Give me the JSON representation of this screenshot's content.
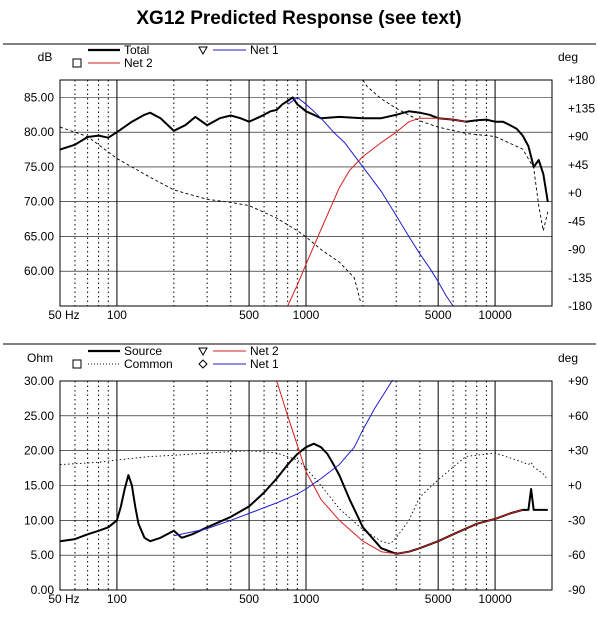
{
  "title": "XG12 Predicted Response (see text)",
  "colors": {
    "total": "#000000",
    "net1": "#1f1fcc",
    "net2": "#d42020",
    "phase": "#000000",
    "grid": "#000000"
  },
  "chart_data": [
    {
      "type": "line",
      "x_scale": "log",
      "xlim": [
        50,
        20000
      ],
      "x_ticks": [
        50,
        100,
        500,
        1000,
        5000,
        10000
      ],
      "x_tick_labels": [
        "50 Hz",
        "100",
        "500",
        "1000",
        "5000",
        "10000"
      ],
      "ylabel": "dB",
      "ylim": [
        55,
        87.5
      ],
      "y_ticks": [
        60,
        65,
        70,
        75,
        80,
        85
      ],
      "y_tick_labels": [
        "60.00",
        "65.00",
        "70.00",
        "75.00",
        "80.00",
        "85.00"
      ],
      "y2label": "deg",
      "y2lim": [
        -180,
        180
      ],
      "y2_ticks": [
        -180,
        -135,
        -90,
        -45,
        0,
        45,
        90,
        135,
        180
      ],
      "y2_tick_labels": [
        "-180",
        "-135",
        "-90",
        "-45",
        "+0",
        "+45",
        "+90",
        "+135",
        "+180"
      ],
      "grid": true,
      "legend": [
        {
          "label": "Total",
          "marker": "line",
          "style": "solid-thick",
          "color": "#000000"
        },
        {
          "label": "Net 1",
          "marker": "triangle",
          "style": "solid",
          "color": "#1f1fcc"
        },
        {
          "label": "Net 2",
          "marker": "square",
          "style": "solid",
          "color": "#d42020"
        }
      ],
      "series": [
        {
          "name": "Total",
          "axis": "left",
          "style": "solid-thick",
          "color": "#000000",
          "x": [
            50,
            60,
            70,
            80,
            90,
            100,
            120,
            140,
            150,
            170,
            200,
            230,
            260,
            300,
            350,
            400,
            450,
            500,
            550,
            600,
            650,
            700,
            750,
            800,
            850,
            900,
            950,
            1000,
            1100,
            1200,
            1500,
            2000,
            2500,
            3000,
            3500,
            4000,
            4500,
            5000,
            6000,
            7000,
            8000,
            9000,
            10000,
            11000,
            12000,
            13000,
            14000,
            15000,
            16000,
            17000,
            18000,
            19000
          ],
          "y": [
            77.5,
            78.2,
            79.3,
            79.5,
            79.2,
            80.0,
            81.5,
            82.5,
            82.8,
            82.0,
            80.2,
            81.0,
            82.2,
            81.0,
            82.0,
            82.4,
            82.0,
            81.5,
            82.0,
            82.5,
            83.0,
            83.2,
            84.0,
            84.5,
            85.0,
            84.0,
            83.5,
            83.0,
            82.5,
            82.0,
            82.2,
            82.0,
            82.0,
            82.5,
            83.0,
            82.8,
            82.5,
            82.0,
            81.8,
            81.5,
            81.7,
            81.8,
            81.5,
            81.5,
            81.0,
            80.5,
            79.5,
            78.0,
            75.0,
            76.0,
            74.0,
            70.0
          ]
        },
        {
          "name": "Net 1",
          "axis": "left",
          "style": "solid",
          "color": "#1f1fcc",
          "x": [
            800,
            850,
            900,
            950,
            1000,
            1100,
            1200,
            1400,
            1600,
            2000,
            2500,
            3000,
            3500,
            4000,
            4500,
            5000,
            5500,
            6000
          ],
          "y": [
            84.0,
            84.5,
            85.0,
            84.5,
            84.0,
            83.0,
            82.0,
            80.0,
            78.5,
            75.0,
            71.5,
            68.0,
            65.0,
            62.5,
            60.5,
            58.5,
            56.5,
            55.0
          ]
        },
        {
          "name": "Net 2",
          "axis": "left",
          "style": "solid",
          "color": "#d42020",
          "x": [
            800,
            900,
            1000,
            1200,
            1500,
            1700,
            2000,
            2500,
            3000,
            3500,
            4000,
            4500,
            5000,
            6000,
            7000
          ],
          "y": [
            55.0,
            58.0,
            61.0,
            66.0,
            72.0,
            74.5,
            76.5,
            78.5,
            80.0,
            81.5,
            82.0,
            82.0,
            82.0,
            81.8,
            81.5
          ]
        },
        {
          "name": "Phase",
          "axis": "right",
          "style": "dashed",
          "color": "#000000",
          "x": [
            50,
            70,
            100,
            150,
            200,
            300,
            400,
            500,
            700,
            900,
            1000,
            1200,
            1500,
            1800,
            1950,
            2000,
            2100,
            2500,
            3000,
            4000,
            5000,
            7000,
            10000,
            14000,
            16000,
            17000,
            18000,
            19000
          ],
          "y": [
            105,
            90,
            55,
            25,
            5,
            -10,
            -15,
            -20,
            -40,
            -60,
            -70,
            -90,
            -110,
            -135,
            -175,
            180,
            170,
            150,
            135,
            115,
            105,
            95,
            90,
            70,
            40,
            -20,
            -60,
            -30
          ]
        }
      ]
    },
    {
      "type": "line",
      "x_scale": "log",
      "xlim": [
        50,
        20000
      ],
      "x_ticks": [
        50,
        100,
        500,
        1000,
        5000,
        10000
      ],
      "x_tick_labels": [
        "50 Hz",
        "100",
        "500",
        "1000",
        "5000",
        "10000"
      ],
      "ylabel": "Ohm",
      "ylim": [
        0,
        30
      ],
      "y_ticks": [
        0,
        5,
        10,
        15,
        20,
        25,
        30
      ],
      "y_tick_labels": [
        "0.00",
        "5.00",
        "10.00",
        "15.00",
        "20.00",
        "25.00",
        "30.00"
      ],
      "y2label": "deg",
      "y2lim": [
        -90,
        90
      ],
      "y2_ticks": [
        -90,
        -60,
        -30,
        0,
        30,
        60,
        90
      ],
      "y2_tick_labels": [
        "-90",
        "-60",
        "-30",
        "+0",
        "+30",
        "+60",
        "+90"
      ],
      "grid": true,
      "legend": [
        {
          "label": "Source",
          "marker": "line",
          "style": "solid-thick",
          "color": "#000000"
        },
        {
          "label": "Net 2",
          "marker": "triangle",
          "style": "solid",
          "color": "#d42020"
        },
        {
          "label": "Common",
          "marker": "square",
          "style": "dotted",
          "color": "#000000"
        },
        {
          "label": "Net 1",
          "marker": "diamond",
          "style": "solid",
          "color": "#1f1fcc"
        }
      ],
      "series": [
        {
          "name": "Source",
          "axis": "left",
          "style": "solid-thick",
          "color": "#000000",
          "x": [
            50,
            60,
            70,
            80,
            90,
            100,
            105,
            110,
            115,
            120,
            125,
            130,
            140,
            150,
            170,
            200,
            220,
            250,
            300,
            400,
            500,
            600,
            700,
            800,
            900,
            1000,
            1100,
            1200,
            1300,
            1400,
            1500,
            1700,
            2000,
            2500,
            3000,
            3500,
            4000,
            5000,
            6000,
            7000,
            8000,
            10000,
            12000,
            14000,
            15000,
            15500,
            16000,
            17000,
            18000,
            19000
          ],
          "y": [
            7.0,
            7.3,
            8.0,
            8.5,
            9.0,
            10.0,
            12.0,
            14.5,
            16.5,
            15.0,
            12.0,
            9.5,
            7.5,
            7.0,
            7.5,
            8.5,
            7.5,
            8.0,
            9.0,
            10.5,
            12.0,
            14.0,
            16.0,
            18.0,
            19.5,
            20.5,
            21.0,
            20.5,
            19.5,
            18.0,
            16.5,
            13.0,
            9.0,
            6.0,
            5.2,
            5.5,
            6.0,
            7.0,
            8.0,
            8.8,
            9.5,
            10.2,
            11.0,
            11.5,
            11.5,
            14.5,
            11.5,
            11.5,
            11.5,
            11.5
          ]
        },
        {
          "name": "Net 2",
          "axis": "left",
          "style": "solid",
          "color": "#d42020",
          "x": [
            700,
            800,
            1000,
            1200,
            1500,
            2000,
            2500,
            3000,
            3500,
            4000,
            5000,
            6000,
            8000,
            10000,
            12000,
            14000
          ],
          "y": [
            30.0,
            25.0,
            17.0,
            13.0,
            10.0,
            7.0,
            5.5,
            5.2,
            5.5,
            6.0,
            7.0,
            8.0,
            9.5,
            10.2,
            11.0,
            11.5
          ]
        },
        {
          "name": "Net 1",
          "axis": "left",
          "style": "solid",
          "color": "#1f1fcc",
          "x": [
            200,
            300,
            400,
            500,
            700,
            900,
            1000,
            1200,
            1500,
            1800,
            2000,
            2300,
            2700,
            3000
          ],
          "y": [
            7.8,
            8.8,
            10.0,
            11.0,
            12.5,
            13.8,
            14.5,
            16.0,
            18.0,
            20.5,
            23.0,
            26.0,
            29.0,
            31.0
          ]
        },
        {
          "name": "Common",
          "axis": "right",
          "style": "dotted",
          "color": "#000000",
          "x": [
            50,
            80,
            100,
            150,
            200,
            300,
            500,
            700,
            900,
            1000,
            1200,
            1500,
            2000,
            2500,
            2800,
            3000,
            3500,
            4000,
            5000,
            7000,
            10000,
            13000,
            15000,
            15500,
            16000,
            18000,
            19000
          ],
          "y": [
            18,
            20,
            22,
            25,
            26,
            28,
            30,
            28,
            22,
            15,
            0,
            -20,
            -38,
            -48,
            -50,
            -45,
            -30,
            -10,
            5,
            25,
            28,
            22,
            18,
            20,
            16,
            10,
            5
          ]
        }
      ]
    }
  ]
}
